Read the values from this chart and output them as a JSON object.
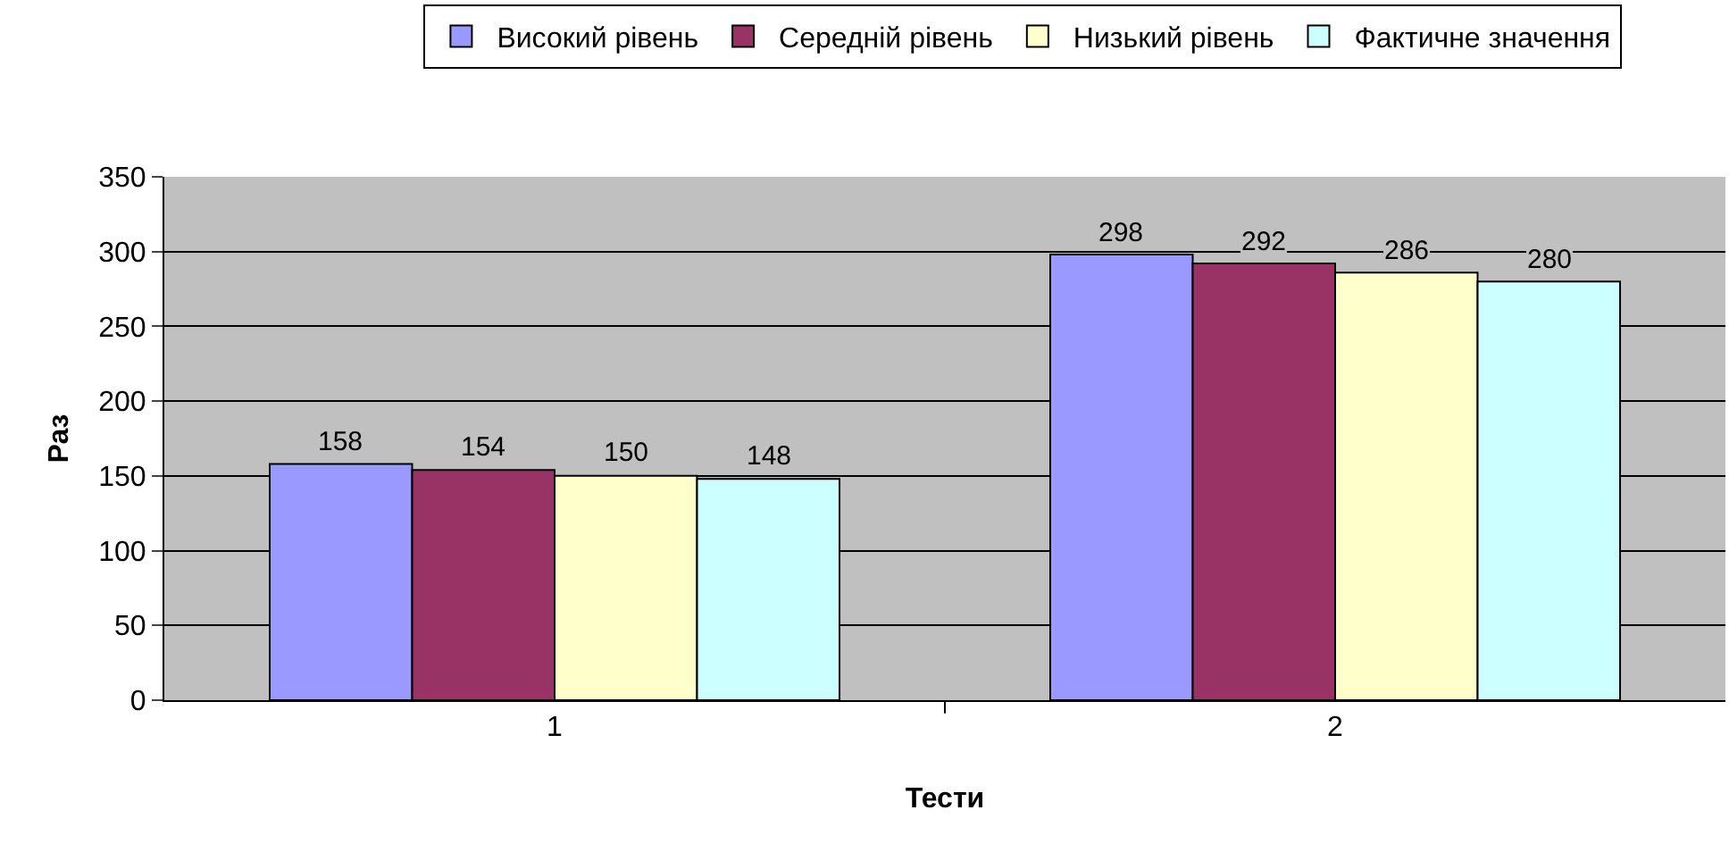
{
  "chart_data": {
    "type": "bar",
    "xlabel": "Тести",
    "ylabel": "Раз",
    "categories": [
      "1",
      "2"
    ],
    "series": [
      {
        "name": "Високий рівень",
        "color": "#9999ff",
        "values": [
          158,
          298
        ]
      },
      {
        "name": "Середній рівень",
        "color": "#993366",
        "values": [
          154,
          292
        ]
      },
      {
        "name": "Низький рівень",
        "color": "#ffffcc",
        "values": [
          150,
          286
        ]
      },
      {
        "name": "Фактичне значення",
        "color": "#ccffff",
        "values": [
          148,
          280
        ]
      }
    ],
    "ylim": [
      0,
      350
    ],
    "yticks": [
      0,
      50,
      100,
      150,
      200,
      250,
      300,
      350
    ],
    "grid": "y",
    "legend": "top",
    "data_labels": true
  }
}
